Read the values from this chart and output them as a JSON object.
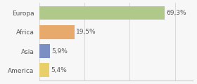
{
  "categories": [
    "Europa",
    "Africa",
    "Asia",
    "America"
  ],
  "values": [
    69.3,
    19.5,
    5.9,
    5.4
  ],
  "labels": [
    "69,3%",
    "19,5%",
    "5,9%",
    "5,4%"
  ],
  "bar_colors": [
    "#b0c98a",
    "#e8a96c",
    "#7b8fc4",
    "#e8cf6a"
  ],
  "background_color": "#f7f7f7",
  "xlim": [
    0,
    85
  ],
  "label_fontsize": 6.5,
  "tick_fontsize": 6.5
}
